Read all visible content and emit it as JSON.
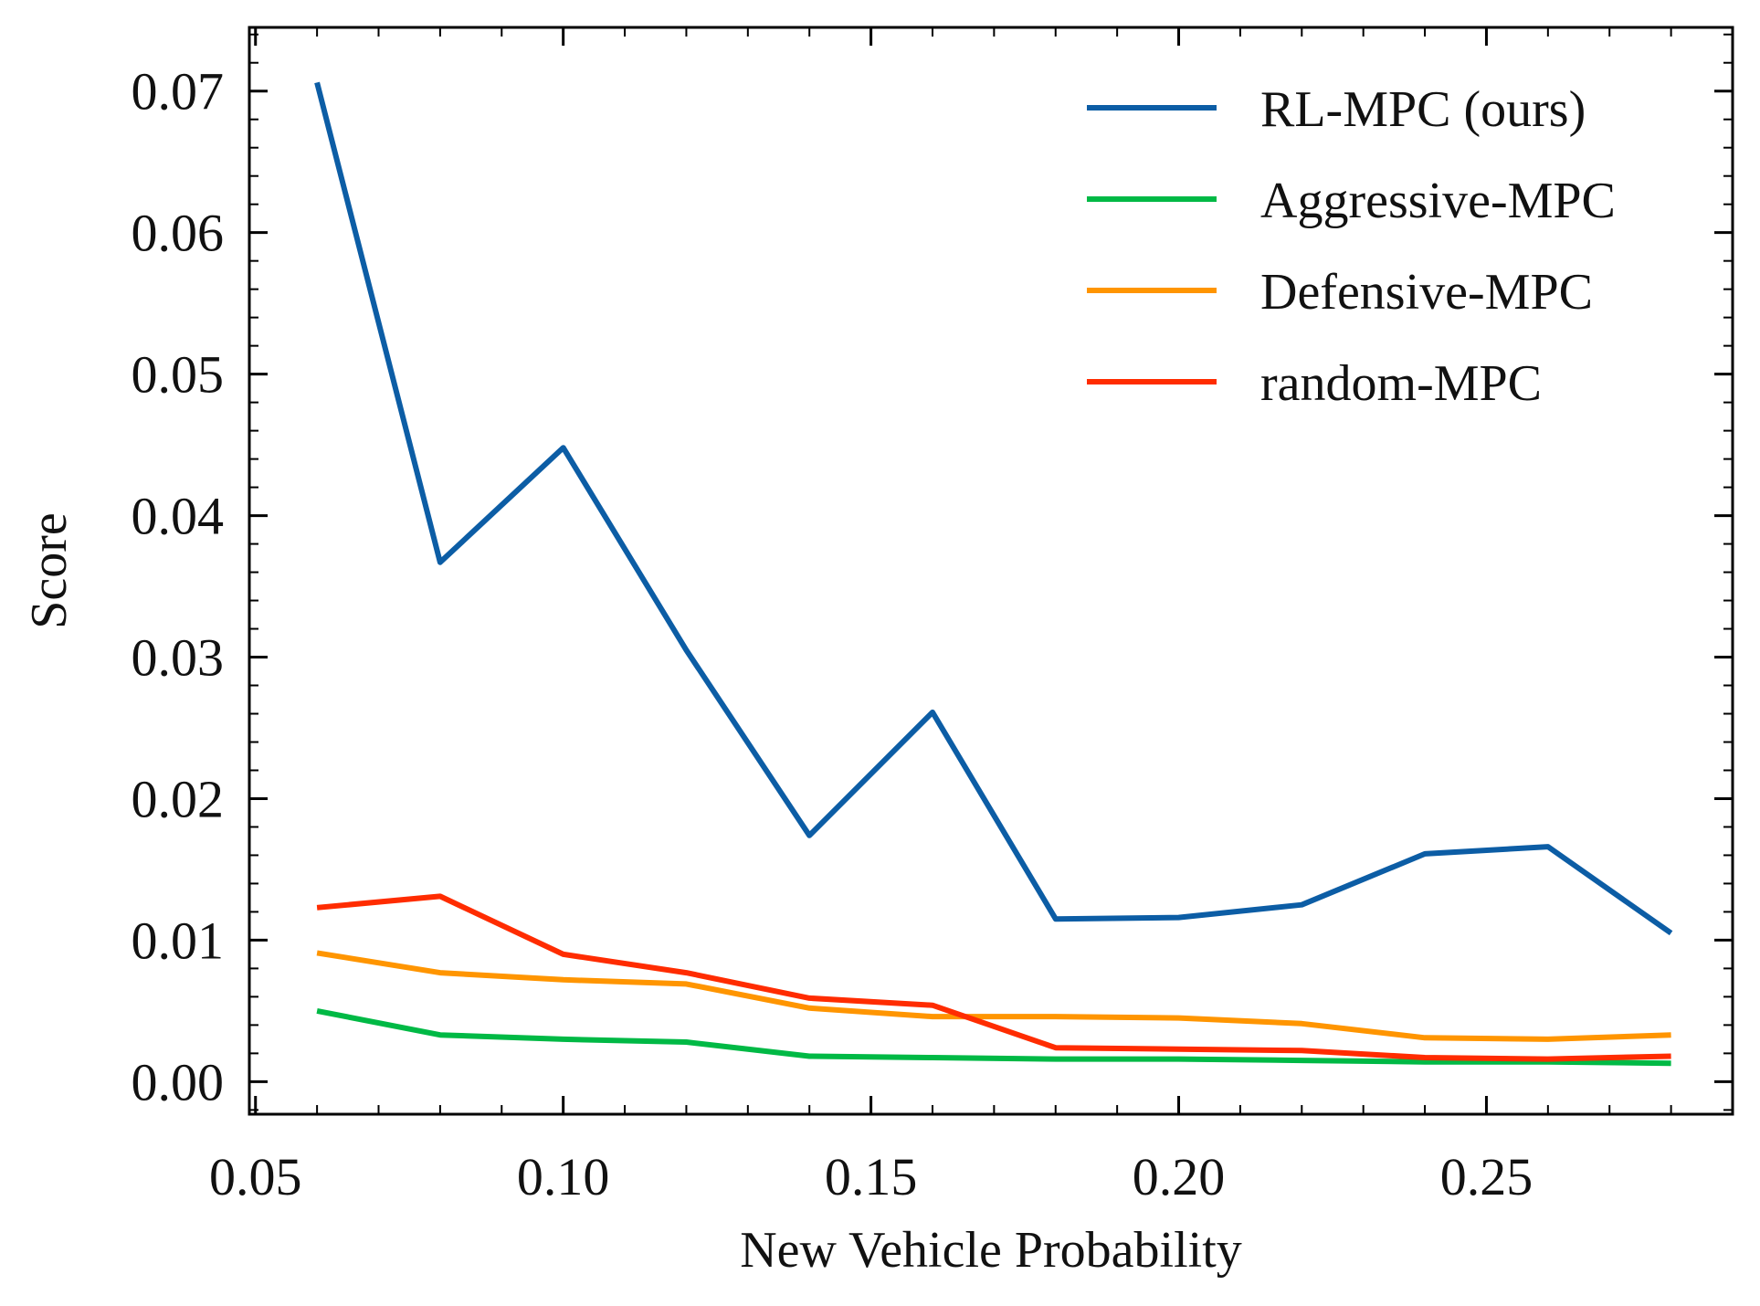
{
  "chart_data": {
    "type": "line",
    "title": "",
    "xlabel": "New Vehicle Probability",
    "ylabel": "Score",
    "xlim": [
      0.049,
      0.29
    ],
    "ylim": [
      -0.0023,
      0.0745
    ],
    "xticks": [
      0.05,
      0.1,
      0.15,
      0.2,
      0.25
    ],
    "xtick_labels": [
      "0.05",
      "0.10",
      "0.15",
      "0.20",
      "0.25"
    ],
    "yticks": [
      0.0,
      0.01,
      0.02,
      0.03,
      0.04,
      0.05,
      0.06,
      0.07
    ],
    "ytick_labels": [
      "0.00",
      "0.01",
      "0.02",
      "0.03",
      "0.04",
      "0.05",
      "0.06",
      "0.07"
    ],
    "grid": false,
    "legend_position": "top-right",
    "x": [
      0.06,
      0.08,
      0.1,
      0.12,
      0.14,
      0.16,
      0.18,
      0.2,
      0.22,
      0.24,
      0.26,
      0.28
    ],
    "series": [
      {
        "name": "RL-MPC (ours)",
        "color": "#0C5DA5",
        "values": [
          0.0706,
          0.0367,
          0.0448,
          0.0305,
          0.0174,
          0.0261,
          0.0115,
          0.0116,
          0.0125,
          0.0161,
          0.0166,
          0.0105
        ]
      },
      {
        "name": "Aggressive-MPC",
        "color": "#00B945",
        "values": [
          0.005,
          0.0033,
          0.003,
          0.0028,
          0.0018,
          0.0017,
          0.0016,
          0.0016,
          0.0015,
          0.0014,
          0.0014,
          0.0013
        ]
      },
      {
        "name": "Defensive-MPC",
        "color": "#FF9500",
        "values": [
          0.0091,
          0.0077,
          0.0072,
          0.0069,
          0.0052,
          0.0046,
          0.0046,
          0.0045,
          0.0041,
          0.0031,
          0.003,
          0.0033
        ]
      },
      {
        "name": "random-MPC",
        "color": "#FF2C00",
        "values": [
          0.0123,
          0.0131,
          0.009,
          0.0077,
          0.0059,
          0.0054,
          0.0024,
          0.0023,
          0.0022,
          0.0017,
          0.0016,
          0.0018
        ]
      }
    ]
  }
}
